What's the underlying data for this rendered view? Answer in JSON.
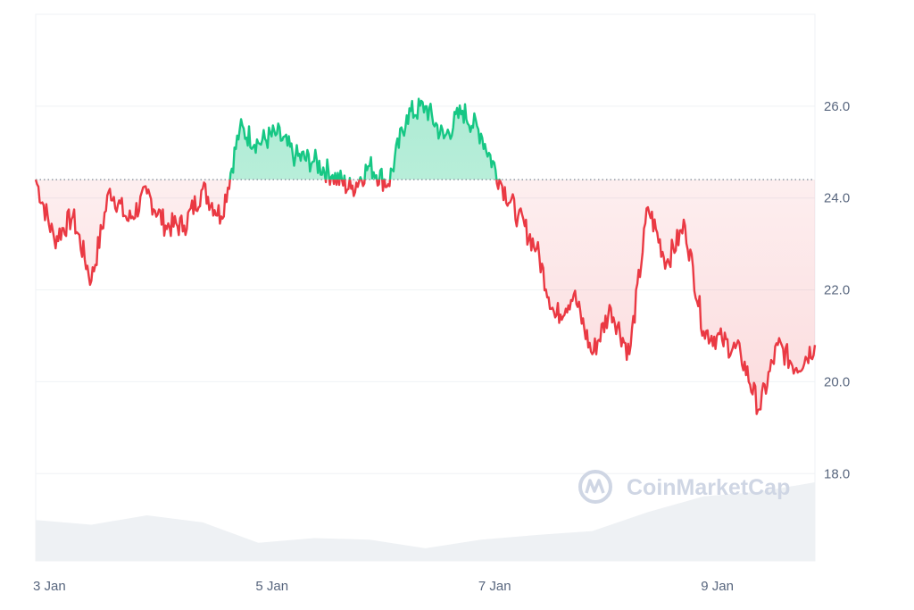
{
  "chart_data": {
    "type": "line",
    "title": "",
    "xlabel": "",
    "ylabel": "",
    "y_ticks": [
      "18.0",
      "20.0",
      "22.0",
      "24.0",
      "26.0"
    ],
    "y_tick_values": [
      18,
      20,
      22,
      24,
      26
    ],
    "x_ticks": [
      "3 Jan",
      "5 Jan",
      "7 Jan",
      "9 Jan"
    ],
    "x_tick_values": [
      "2024-01-03",
      "2024-01-05",
      "2024-01-07",
      "2024-01-09"
    ],
    "ylim": [
      16.1,
      28.0
    ],
    "xlim": [
      "2024-01-03T00:00",
      "2024-01-10T00:00"
    ],
    "baseline": 24.4,
    "grid": "horizontal",
    "colors": {
      "above": "#16c784",
      "below": "#ea3943",
      "fill_above": "#16c784",
      "fill_below": "#ea3943",
      "volume": "#eef1f4",
      "grid": "#eff2f5",
      "tick_label": "#58667e"
    },
    "watermark": "CoinMarketCap",
    "series": [
      {
        "x": [
          "2024-01-03T00:00",
          "2024-01-03T04:00",
          "2024-01-03T08:00",
          "2024-01-03T12:00",
          "2024-01-03T16:00",
          "2024-01-03T20:00",
          "2024-01-04T00:00",
          "2024-01-04T04:00",
          "2024-01-04T08:00",
          "2024-01-04T12:00",
          "2024-01-04T16:00",
          "2024-01-04T20:00",
          "2024-01-05T00:00",
          "2024-01-05T04:00",
          "2024-01-05T08:00",
          "2024-01-05T12:00",
          "2024-01-05T16:00",
          "2024-01-05T20:00",
          "2024-01-06T00:00",
          "2024-01-06T04:00",
          "2024-01-06T08:00",
          "2024-01-06T12:00",
          "2024-01-06T16:00",
          "2024-01-06T20:00",
          "2024-01-07T00:00",
          "2024-01-07T04:00",
          "2024-01-07T08:00",
          "2024-01-07T12:00",
          "2024-01-07T16:00",
          "2024-01-07T20:00",
          "2024-01-08T00:00",
          "2024-01-08T04:00",
          "2024-01-08T08:00",
          "2024-01-08T12:00",
          "2024-01-08T16:00",
          "2024-01-08T20:00",
          "2024-01-09T00:00",
          "2024-01-09T04:00",
          "2024-01-09T08:00",
          "2024-01-09T12:00",
          "2024-01-09T16:00",
          "2024-01-09T20:00",
          "2024-01-10T00:00"
        ],
        "values": [
          24.4,
          23.1,
          23.6,
          22.2,
          24.2,
          23.5,
          24.1,
          23.4,
          23.4,
          24.2,
          23.6,
          25.5,
          25.2,
          25.4,
          24.9,
          24.8,
          24.5,
          24.2,
          24.7,
          24.3,
          25.8,
          26.0,
          25.3,
          25.9,
          25.4,
          24.4,
          23.6,
          22.9,
          21.4,
          21.9,
          20.6,
          21.6,
          20.6,
          23.8,
          22.6,
          23.4,
          21.1,
          20.9,
          20.6,
          19.4,
          20.8,
          20.3,
          20.8
        ]
      }
    ],
    "volume": {
      "x": [
        "2024-01-03T00:00",
        "2024-01-03T12:00",
        "2024-01-04T00:00",
        "2024-01-04T12:00",
        "2024-01-05T00:00",
        "2024-01-05T12:00",
        "2024-01-06T00:00",
        "2024-01-06T12:00",
        "2024-01-07T00:00",
        "2024-01-07T12:00",
        "2024-01-08T00:00",
        "2024-01-08T12:00",
        "2024-01-09T00:00",
        "2024-01-09T12:00",
        "2024-01-10T00:00"
      ],
      "values": [
        0.52,
        0.46,
        0.58,
        0.49,
        0.23,
        0.29,
        0.27,
        0.16,
        0.27,
        0.33,
        0.38,
        0.62,
        0.82,
        0.88,
        1.0
      ]
    }
  }
}
